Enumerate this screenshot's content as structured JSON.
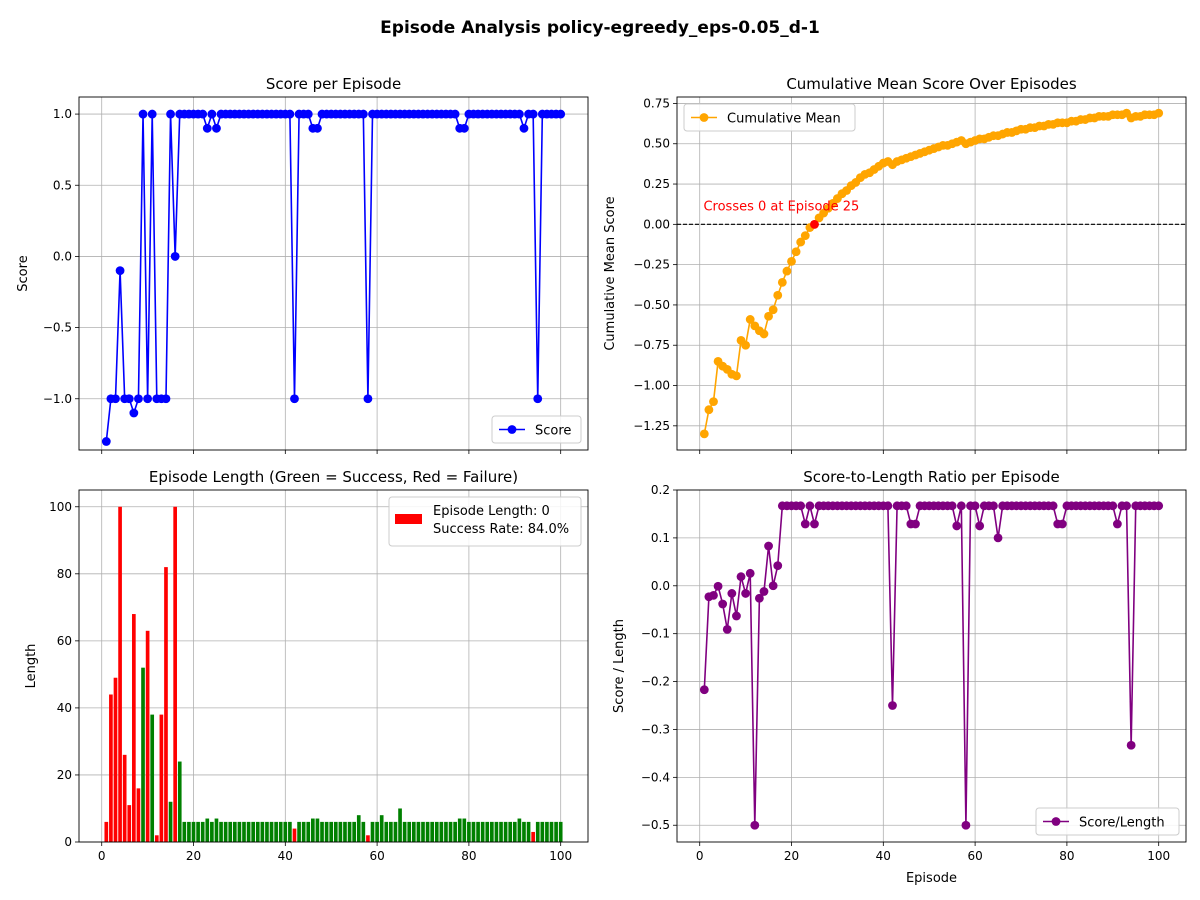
{
  "figure": {
    "suptitle": "Episode Analysis policy-egreedy_eps-0.05_d-1"
  },
  "colors": {
    "score": "#0000ff",
    "cummean": "#ffa500",
    "success": "#008000",
    "failure": "#ff0000",
    "ratio": "#800080",
    "zero_line": "#000000",
    "annotation": "#ff0000"
  },
  "chart_data": [
    {
      "id": "score",
      "type": "line",
      "title": "Score per Episode",
      "xlabel": "",
      "ylabel": "Score",
      "xlim": [
        -4.95,
        105.95
      ],
      "ylim": [
        -1.36,
        1.12
      ],
      "xticks": [
        0,
        20,
        40,
        60,
        80,
        100
      ],
      "yticks": [
        -1.0,
        -0.5,
        0.0,
        0.5,
        1.0
      ],
      "ytick_labels": [
        "−1.0",
        "−0.5",
        "0.0",
        "0.5",
        "1.0"
      ],
      "show_xtick_labels": false,
      "grid": true,
      "legend": {
        "loc": "lower-right",
        "label": "Score"
      },
      "x": [
        1,
        2,
        3,
        4,
        5,
        6,
        7,
        8,
        9,
        10,
        11,
        12,
        13,
        14,
        15,
        16,
        17,
        18,
        19,
        20,
        21,
        22,
        23,
        24,
        25,
        26,
        27,
        28,
        29,
        30,
        31,
        32,
        33,
        34,
        35,
        36,
        37,
        38,
        39,
        40,
        41,
        42,
        43,
        44,
        45,
        46,
        47,
        48,
        49,
        50,
        51,
        52,
        53,
        54,
        55,
        56,
        57,
        58,
        59,
        60,
        61,
        62,
        63,
        64,
        65,
        66,
        67,
        68,
        69,
        70,
        71,
        72,
        73,
        74,
        75,
        76,
        77,
        78,
        79,
        80,
        81,
        82,
        83,
        84,
        85,
        86,
        87,
        88,
        89,
        90,
        91,
        92,
        93,
        94,
        95,
        96,
        97,
        98,
        99,
        100
      ],
      "series": [
        {
          "name": "Score",
          "values": [
            -1.3,
            -1,
            -1,
            -0.1,
            -1,
            -1,
            -1.1,
            -1,
            1,
            -1,
            1,
            -1,
            -1,
            -1,
            1,
            0,
            1,
            1,
            1,
            1,
            1,
            1,
            0.9,
            1,
            0.9,
            1,
            1,
            1,
            1,
            1,
            1,
            1,
            1,
            1,
            1,
            1,
            1,
            1,
            1,
            1,
            1,
            -1,
            1,
            1,
            1,
            0.9,
            0.9,
            1,
            1,
            1,
            1,
            1,
            1,
            1,
            1,
            1,
            1,
            -1,
            1,
            1,
            1,
            1,
            1,
            1,
            1,
            1,
            1,
            1,
            1,
            1,
            1,
            1,
            1,
            1,
            1,
            1,
            1,
            0.9,
            0.9,
            1,
            1,
            1,
            1,
            1,
            1,
            1,
            1,
            1,
            1,
            1,
            1,
            0.9,
            1,
            1,
            -1,
            1,
            1,
            1,
            1,
            1
          ]
        }
      ]
    },
    {
      "id": "cummean",
      "type": "line",
      "title": "Cumulative Mean Score Over Episodes",
      "xlabel": "",
      "ylabel": "Cumulative Mean Score",
      "xlim": [
        -4.95,
        105.95
      ],
      "ylim": [
        -1.4,
        0.79
      ],
      "xticks": [
        0,
        20,
        40,
        60,
        80,
        100
      ],
      "yticks": [
        -1.25,
        -1.0,
        -0.75,
        -0.5,
        -0.25,
        0.0,
        0.25,
        0.5,
        0.75
      ],
      "ytick_labels": [
        "−1.25",
        "−1.00",
        "−0.75",
        "−0.50",
        "−0.25",
        "0.00",
        "0.25",
        "0.50",
        "0.75"
      ],
      "show_xtick_labels": false,
      "grid": true,
      "legend": {
        "loc": "upper-left",
        "label": "Cumulative Mean"
      },
      "zero_line": 0,
      "annotation": {
        "text": "Crosses 0 at Episode 25",
        "x": 25,
        "y": 0.0
      },
      "x": [
        1,
        2,
        3,
        4,
        5,
        6,
        7,
        8,
        9,
        10,
        11,
        12,
        13,
        14,
        15,
        16,
        17,
        18,
        19,
        20,
        21,
        22,
        23,
        24,
        25,
        26,
        27,
        28,
        29,
        30,
        31,
        32,
        33,
        34,
        35,
        36,
        37,
        38,
        39,
        40,
        41,
        42,
        43,
        44,
        45,
        46,
        47,
        48,
        49,
        50,
        51,
        52,
        53,
        54,
        55,
        56,
        57,
        58,
        59,
        60,
        61,
        62,
        63,
        64,
        65,
        66,
        67,
        68,
        69,
        70,
        71,
        72,
        73,
        74,
        75,
        76,
        77,
        78,
        79,
        80,
        81,
        82,
        83,
        84,
        85,
        86,
        87,
        88,
        89,
        90,
        91,
        92,
        93,
        94,
        95,
        96,
        97,
        98,
        99,
        100
      ],
      "series": [
        {
          "name": "Cumulative Mean",
          "values": [
            -1.3,
            -1.15,
            -1.1,
            -0.85,
            -0.88,
            -0.9,
            -0.93,
            -0.94,
            -0.72,
            -0.75,
            -0.59,
            -0.63,
            -0.66,
            -0.68,
            -0.57,
            -0.53,
            -0.44,
            -0.36,
            -0.29,
            -0.23,
            -0.17,
            -0.11,
            -0.07,
            -0.02,
            0.0,
            0.04,
            0.07,
            0.1,
            0.13,
            0.16,
            0.19,
            0.21,
            0.24,
            0.26,
            0.29,
            0.31,
            0.32,
            0.34,
            0.36,
            0.38,
            0.39,
            0.37,
            0.39,
            0.4,
            0.41,
            0.42,
            0.43,
            0.44,
            0.45,
            0.46,
            0.47,
            0.48,
            0.49,
            0.49,
            0.5,
            0.51,
            0.52,
            0.5,
            0.51,
            0.52,
            0.53,
            0.53,
            0.54,
            0.55,
            0.55,
            0.56,
            0.57,
            0.57,
            0.58,
            0.59,
            0.59,
            0.6,
            0.6,
            0.61,
            0.61,
            0.62,
            0.62,
            0.63,
            0.63,
            0.63,
            0.64,
            0.64,
            0.65,
            0.65,
            0.66,
            0.66,
            0.67,
            0.67,
            0.67,
            0.68,
            0.68,
            0.68,
            0.69,
            0.66,
            0.67,
            0.67,
            0.68,
            0.68,
            0.68,
            0.69
          ]
        }
      ]
    },
    {
      "id": "length",
      "type": "bar",
      "title": "Episode Length (Green = Success, Red = Failure)",
      "xlabel": "",
      "ylabel": "Length",
      "xlim": [
        -4.95,
        105.95
      ],
      "ylim": [
        0,
        105
      ],
      "xticks": [
        0,
        20,
        40,
        60,
        80,
        100
      ],
      "yticks": [
        0,
        20,
        40,
        60,
        80,
        100
      ],
      "ytick_labels": [
        "0",
        "20",
        "40",
        "60",
        "80",
        "100"
      ],
      "show_xtick_labels": true,
      "grid": true,
      "legend": {
        "loc": "upper-right",
        "line1": "Episode Length: 0",
        "line2": "Success Rate: 84.0%"
      },
      "x": [
        1,
        2,
        3,
        4,
        5,
        6,
        7,
        8,
        9,
        10,
        11,
        12,
        13,
        14,
        15,
        16,
        17,
        18,
        19,
        20,
        21,
        22,
        23,
        24,
        25,
        26,
        27,
        28,
        29,
        30,
        31,
        32,
        33,
        34,
        35,
        36,
        37,
        38,
        39,
        40,
        41,
        42,
        43,
        44,
        45,
        46,
        47,
        48,
        49,
        50,
        51,
        52,
        53,
        54,
        55,
        56,
        57,
        58,
        59,
        60,
        61,
        62,
        63,
        64,
        65,
        66,
        67,
        68,
        69,
        70,
        71,
        72,
        73,
        74,
        75,
        76,
        77,
        78,
        79,
        80,
        81,
        82,
        83,
        84,
        85,
        86,
        87,
        88,
        89,
        90,
        91,
        92,
        93,
        94,
        95,
        96,
        97,
        98,
        99,
        100
      ],
      "values": [
        6,
        44,
        49,
        100,
        26,
        11,
        68,
        16,
        52,
        63,
        38,
        2,
        38,
        82,
        12,
        100,
        24,
        6,
        6,
        6,
        6,
        6,
        7,
        6,
        7,
        6,
        6,
        6,
        6,
        6,
        6,
        6,
        6,
        6,
        6,
        6,
        6,
        6,
        6,
        6,
        6,
        4,
        6,
        6,
        6,
        7,
        7,
        6,
        6,
        6,
        6,
        6,
        6,
        6,
        6,
        8,
        6,
        2,
        6,
        6,
        8,
        6,
        6,
        6,
        10,
        6,
        6,
        6,
        6,
        6,
        6,
        6,
        6,
        6,
        6,
        6,
        6,
        7,
        7,
        6,
        6,
        6,
        6,
        6,
        6,
        6,
        6,
        6,
        6,
        6,
        7,
        6,
        6,
        3,
        6,
        6,
        6,
        6,
        6,
        6
      ],
      "success": [
        0,
        0,
        0,
        0,
        0,
        0,
        0,
        0,
        1,
        0,
        1,
        0,
        0,
        0,
        1,
        0,
        1,
        1,
        1,
        1,
        1,
        1,
        1,
        1,
        1,
        1,
        1,
        1,
        1,
        1,
        1,
        1,
        1,
        1,
        1,
        1,
        1,
        1,
        1,
        1,
        1,
        0,
        1,
        1,
        1,
        1,
        1,
        1,
        1,
        1,
        1,
        1,
        1,
        1,
        1,
        1,
        1,
        0,
        1,
        1,
        1,
        1,
        1,
        1,
        1,
        1,
        1,
        1,
        1,
        1,
        1,
        1,
        1,
        1,
        1,
        1,
        1,
        1,
        1,
        1,
        1,
        1,
        1,
        1,
        1,
        1,
        1,
        1,
        1,
        1,
        1,
        1,
        1,
        0,
        1,
        1,
        1,
        1,
        1,
        1
      ]
    },
    {
      "id": "ratio",
      "type": "line",
      "title": "Score-to-Length Ratio per Episode",
      "xlabel": "Episode",
      "ylabel": "Score / Length",
      "xlim": [
        -4.95,
        105.95
      ],
      "ylim": [
        -0.535,
        0.2
      ],
      "xticks": [
        0,
        20,
        40,
        60,
        80,
        100
      ],
      "yticks": [
        -0.5,
        -0.4,
        -0.3,
        -0.2,
        -0.1,
        0.0,
        0.1,
        0.2
      ],
      "ytick_labels": [
        "−0.5",
        "−0.4",
        "−0.3",
        "−0.2",
        "−0.1",
        "0.0",
        "0.1",
        "0.2"
      ],
      "show_xtick_labels": true,
      "grid": true,
      "legend": {
        "loc": "lower-right",
        "label": "Score/Length"
      },
      "x": [
        1,
        2,
        3,
        4,
        5,
        6,
        7,
        8,
        9,
        10,
        11,
        12,
        13,
        14,
        15,
        16,
        17,
        18,
        19,
        20,
        21,
        22,
        23,
        24,
        25,
        26,
        27,
        28,
        29,
        30,
        31,
        32,
        33,
        34,
        35,
        36,
        37,
        38,
        39,
        40,
        41,
        42,
        43,
        44,
        45,
        46,
        47,
        48,
        49,
        50,
        51,
        52,
        53,
        54,
        55,
        56,
        57,
        58,
        59,
        60,
        61,
        62,
        63,
        64,
        65,
        66,
        67,
        68,
        69,
        70,
        71,
        72,
        73,
        74,
        75,
        76,
        77,
        78,
        79,
        80,
        81,
        82,
        83,
        84,
        85,
        86,
        87,
        88,
        89,
        90,
        91,
        92,
        93,
        94,
        95,
        96,
        97,
        98,
        99,
        100
      ],
      "series": [
        {
          "name": "Score/Length",
          "values": [
            -0.217,
            -0.023,
            -0.02,
            -0.001,
            -0.038,
            -0.091,
            -0.016,
            -0.063,
            0.019,
            -0.016,
            0.026,
            -0.5,
            -0.026,
            -0.012,
            0.083,
            0.0,
            0.042,
            0.167,
            0.167,
            0.167,
            0.167,
            0.167,
            0.129,
            0.167,
            0.129,
            0.167,
            0.167,
            0.167,
            0.167,
            0.167,
            0.167,
            0.167,
            0.167,
            0.167,
            0.167,
            0.167,
            0.167,
            0.167,
            0.167,
            0.167,
            0.167,
            -0.25,
            0.167,
            0.167,
            0.167,
            0.129,
            0.129,
            0.167,
            0.167,
            0.167,
            0.167,
            0.167,
            0.167,
            0.167,
            0.167,
            0.125,
            0.167,
            -0.5,
            0.167,
            0.167,
            0.125,
            0.167,
            0.167,
            0.167,
            0.1,
            0.167,
            0.167,
            0.167,
            0.167,
            0.167,
            0.167,
            0.167,
            0.167,
            0.167,
            0.167,
            0.167,
            0.167,
            0.129,
            0.129,
            0.167,
            0.167,
            0.167,
            0.167,
            0.167,
            0.167,
            0.167,
            0.167,
            0.167,
            0.167,
            0.167,
            0.129,
            0.167,
            0.167,
            -0.333,
            0.167,
            0.167,
            0.167,
            0.167,
            0.167,
            0.167
          ]
        }
      ]
    }
  ]
}
